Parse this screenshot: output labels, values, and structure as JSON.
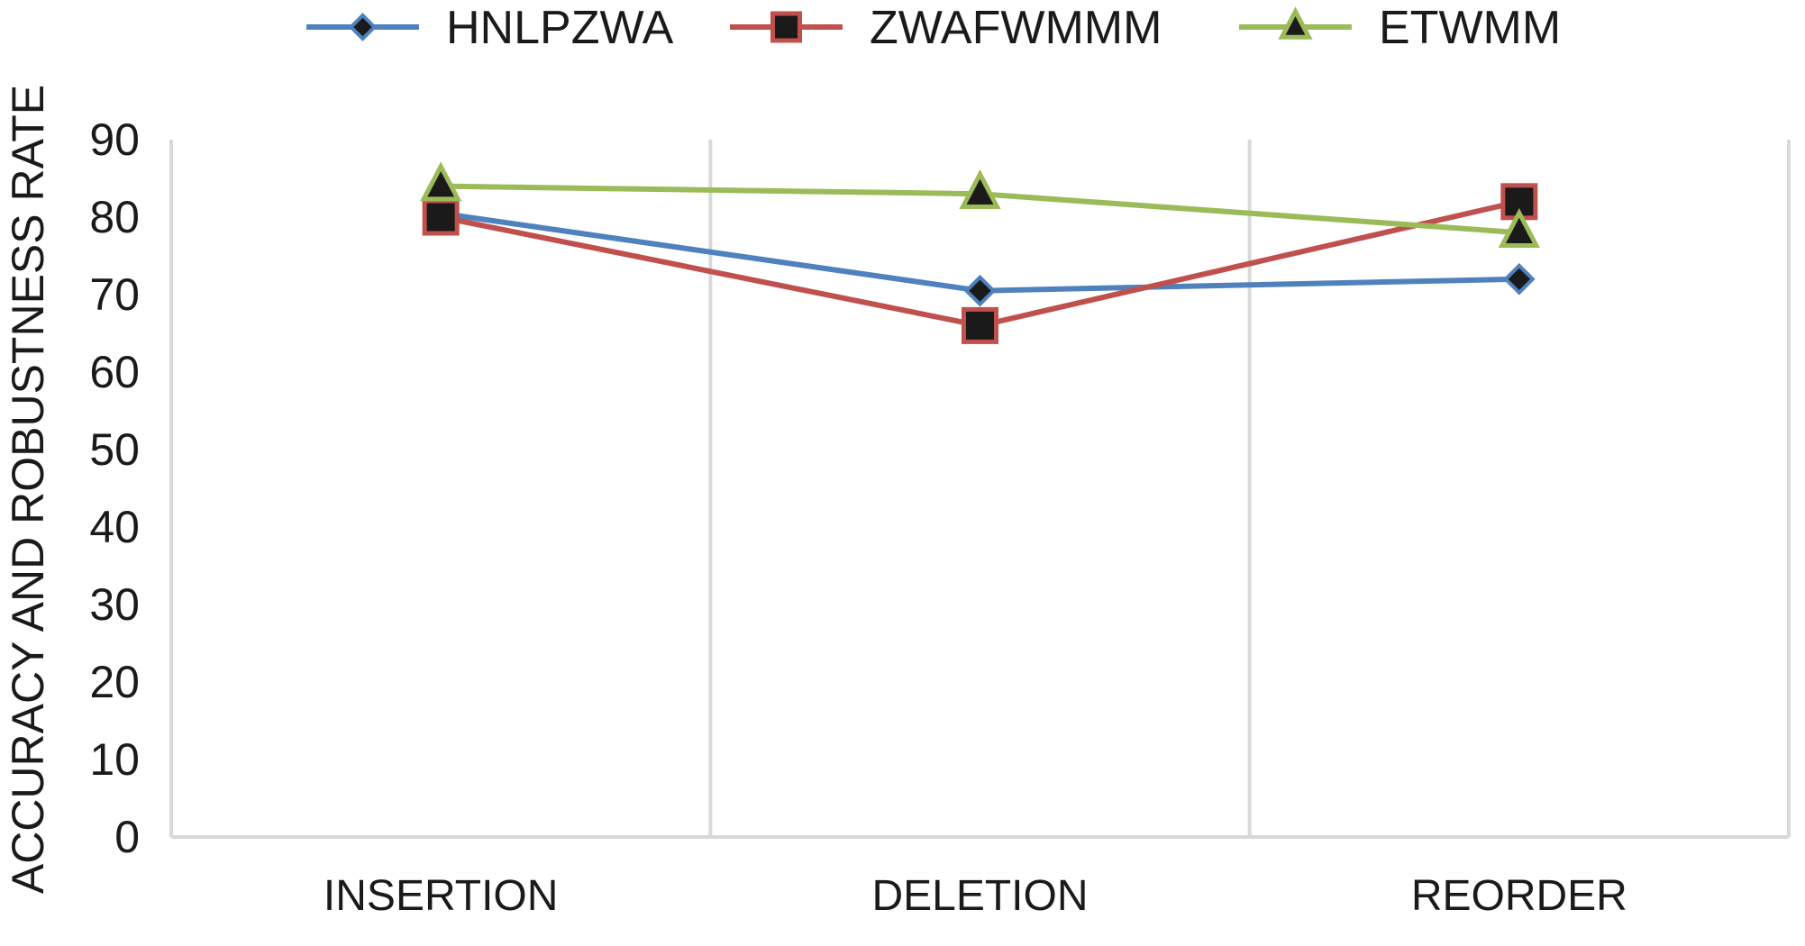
{
  "chart_data": {
    "type": "line",
    "title": "",
    "xlabel": "",
    "ylabel": "ACCURACY AND ROBUSTNESS RATE",
    "categories": [
      "INSERTION",
      "DELETION",
      "REORDER"
    ],
    "ylim": [
      0,
      90
    ],
    "yticks": [
      0,
      10,
      20,
      30,
      40,
      50,
      60,
      70,
      80,
      90
    ],
    "grid": "vertical category separators",
    "legend_position": "top",
    "series": [
      {
        "name": "HNLPZWA",
        "values": [
          80.5,
          70.5,
          72
        ],
        "color": "#4f81bd",
        "marker": "diamond",
        "marker_fill": "#1a1a1a"
      },
      {
        "name": "ZWAFWMMM",
        "values": [
          80,
          66,
          82
        ],
        "color": "#c0504d",
        "marker": "square",
        "marker_fill": "#1a1a1a"
      },
      {
        "name": "ETWMM",
        "values": [
          84,
          83,
          78
        ],
        "color": "#9bbb59",
        "marker": "triangle",
        "marker_fill": "#1a1a1a"
      }
    ]
  }
}
